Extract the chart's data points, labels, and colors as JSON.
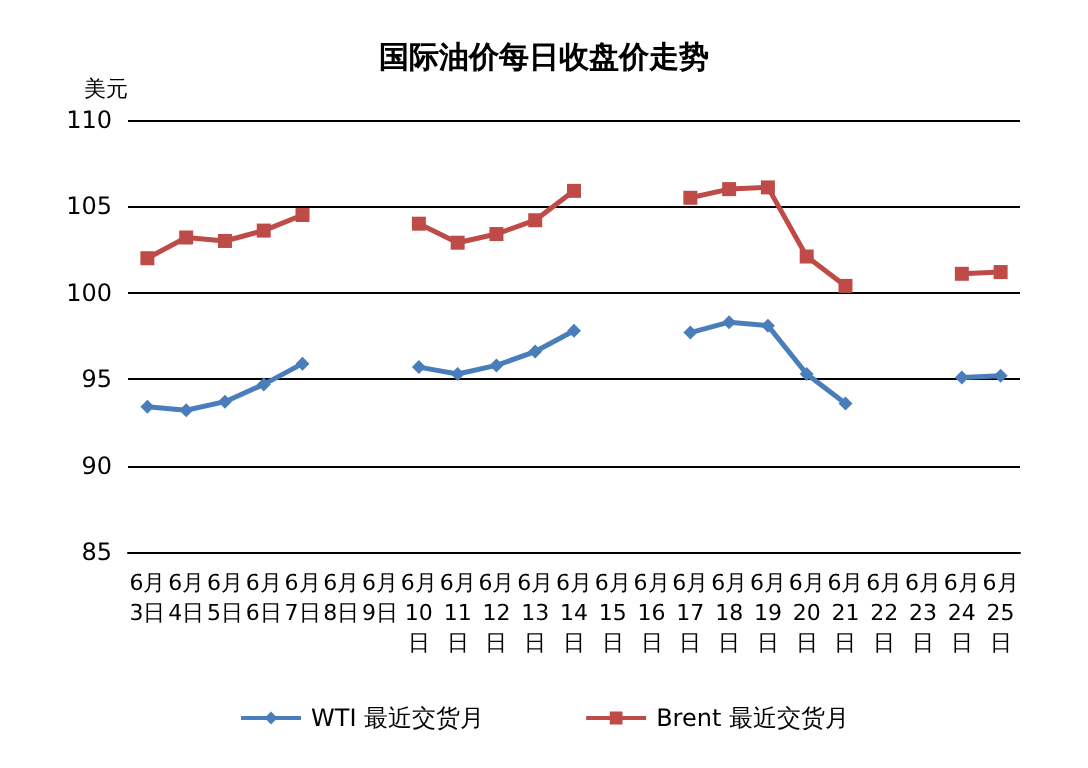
{
  "chart_data": {
    "type": "line",
    "title": "国际油价每日收盘价走势",
    "ylabel": "美元",
    "categories": [
      "6月3日",
      "6月4日",
      "6月5日",
      "6月6日",
      "6月7日",
      "6月8日",
      "6月9日",
      "6月10日",
      "6月11日",
      "6月12日",
      "6月13日",
      "6月14日",
      "6月15日",
      "6月16日",
      "6月17日",
      "6月18日",
      "6月19日",
      "6月20日",
      "6月21日",
      "6月22日",
      "6月23日",
      "6月24日",
      "6月25日"
    ],
    "series": [
      {
        "name": "WTI 最近交货月",
        "color": "#4a7ebb",
        "marker": "diamond",
        "values": [
          93.4,
          93.2,
          93.7,
          94.7,
          95.9,
          null,
          null,
          95.7,
          95.3,
          95.8,
          96.6,
          97.8,
          null,
          null,
          97.7,
          98.3,
          98.1,
          95.3,
          93.6,
          null,
          null,
          95.1,
          95.2
        ]
      },
      {
        "name": "Brent 最近交货月",
        "color": "#be4b48",
        "marker": "square",
        "values": [
          102.0,
          103.2,
          103.0,
          103.6,
          104.5,
          null,
          null,
          104.0,
          102.9,
          103.4,
          104.2,
          105.9,
          null,
          null,
          105.5,
          106.0,
          106.1,
          102.1,
          100.4,
          null,
          null,
          101.1,
          101.2
        ]
      }
    ],
    "ylim": [
      85,
      110
    ],
    "yticks": [
      85,
      90,
      95,
      100,
      105,
      110
    ],
    "grid": "y",
    "legend": "bottom"
  }
}
